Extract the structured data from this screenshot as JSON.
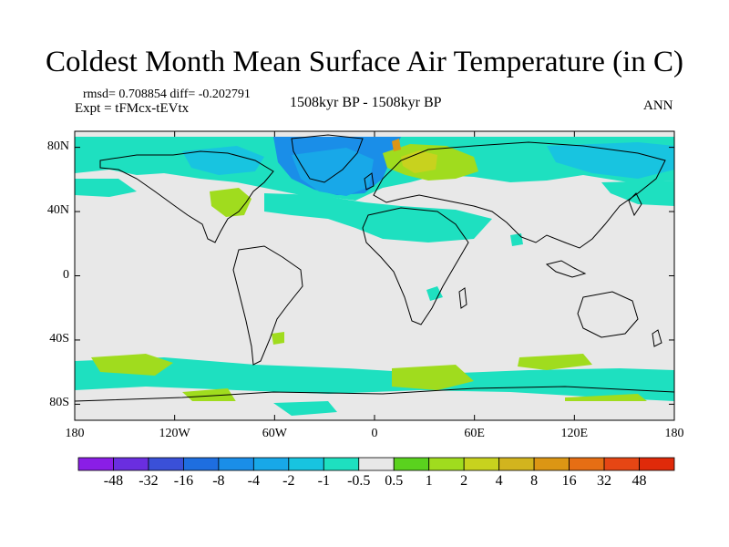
{
  "title": "Coldest Month Mean Surface Air Temperature (in C)",
  "stats": "rmsd= 0.708854 diff= -0.202791",
  "experiment": "Expt = tFMcx-tEVtx",
  "period": "1508kyr BP - 1508kyr BP",
  "season": "ANN",
  "map": {
    "projection": "cylindrical equidistant",
    "lon_range": [
      -180,
      180
    ],
    "lat_range": [
      -90,
      90
    ],
    "lat_ticks": [
      {
        "value": 80,
        "label": "80N"
      },
      {
        "value": 40,
        "label": "40N"
      },
      {
        "value": 0,
        "label": "0"
      },
      {
        "value": -40,
        "label": "40S"
      },
      {
        "value": -80,
        "label": "80S"
      }
    ],
    "lon_ticks": [
      {
        "value": -180,
        "label": "180"
      },
      {
        "value": -120,
        "label": "120W"
      },
      {
        "value": -60,
        "label": "60W"
      },
      {
        "value": 0,
        "label": "0"
      },
      {
        "value": 60,
        "label": "60E"
      },
      {
        "value": 120,
        "label": "120E"
      },
      {
        "value": 180,
        "label": "180"
      }
    ],
    "background_color": "#e8e8e8"
  },
  "colorbar": {
    "labels": [
      "-48",
      "-32",
      "-16",
      "-8",
      "-4",
      "-2",
      "-1",
      "-0.5",
      "0.5",
      "1",
      "2",
      "4",
      "8",
      "16",
      "32",
      "48"
    ],
    "colors": [
      "#8a1ee6",
      "#6a2ee0",
      "#3a50d8",
      "#1e6ee0",
      "#1a8ee8",
      "#18a8e8",
      "#18c4e0",
      "#1ee0c0",
      "#e8e8e8",
      "#5ad21e",
      "#a0dc1e",
      "#c8d21e",
      "#d2b41e",
      "#dc9614",
      "#e66e14",
      "#e64614",
      "#e02a0a"
    ]
  }
}
